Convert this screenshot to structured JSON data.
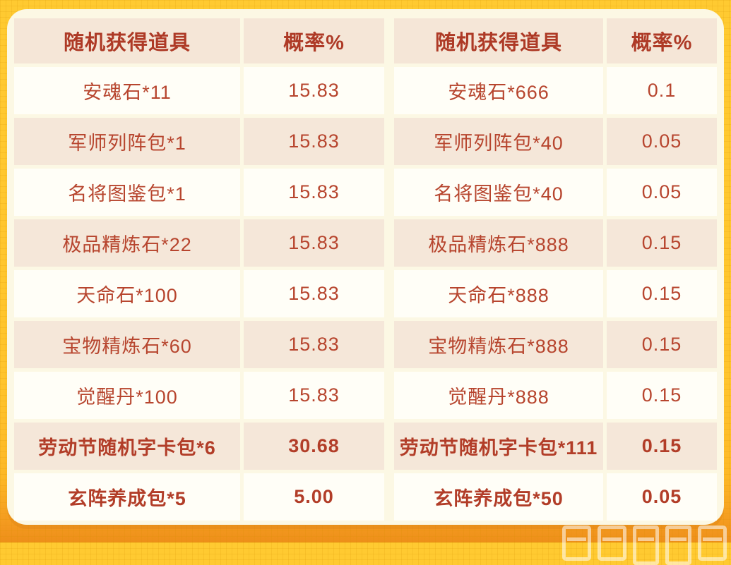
{
  "colors": {
    "frame_yellow": "#ffc42c",
    "frame_orange_bottom": "#f3981f",
    "card_cream": "#fcf8e4",
    "header_beige": "#f5e6d7",
    "row_white": "#fffef7",
    "row_beige": "#f5e7d9",
    "text_red": "#b7452e"
  },
  "tables": [
    {
      "name": "left-rate-table",
      "headers": [
        "随机获得道具",
        "概率%"
      ],
      "rows": [
        {
          "item": "安魂石*11",
          "rate": "15.83",
          "bold": false
        },
        {
          "item": "军师列阵包*1",
          "rate": "15.83",
          "bold": false
        },
        {
          "item": "名将图鉴包*1",
          "rate": "15.83",
          "bold": false
        },
        {
          "item": "极品精炼石*22",
          "rate": "15.83",
          "bold": false
        },
        {
          "item": "天命石*100",
          "rate": "15.83",
          "bold": false
        },
        {
          "item": "宝物精炼石*60",
          "rate": "15.83",
          "bold": false
        },
        {
          "item": "觉醒丹*100",
          "rate": "15.83",
          "bold": false
        },
        {
          "item": "劳动节随机字卡包*6",
          "rate": "30.68",
          "bold": true
        },
        {
          "item": "玄阵养成包*5",
          "rate": "5.00",
          "bold": true
        }
      ]
    },
    {
      "name": "right-rate-table",
      "headers": [
        "随机获得道具",
        "概率%"
      ],
      "rows": [
        {
          "item": "安魂石*666",
          "rate": "0.1",
          "bold": false
        },
        {
          "item": "军师列阵包*40",
          "rate": "0.05",
          "bold": false
        },
        {
          "item": "名将图鉴包*40",
          "rate": "0.05",
          "bold": false
        },
        {
          "item": "极品精炼石*888",
          "rate": "0.15",
          "bold": false
        },
        {
          "item": "天命石*888",
          "rate": "0.15",
          "bold": false
        },
        {
          "item": "宝物精炼石*888",
          "rate": "0.15",
          "bold": false
        },
        {
          "item": "觉醒丹*888",
          "rate": "0.15",
          "bold": false
        },
        {
          "item": "劳动节随机字卡包*111",
          "rate": "0.15",
          "bold": true
        },
        {
          "item": "玄阵养成包*50",
          "rate": "0.05",
          "bold": true
        }
      ]
    }
  ]
}
